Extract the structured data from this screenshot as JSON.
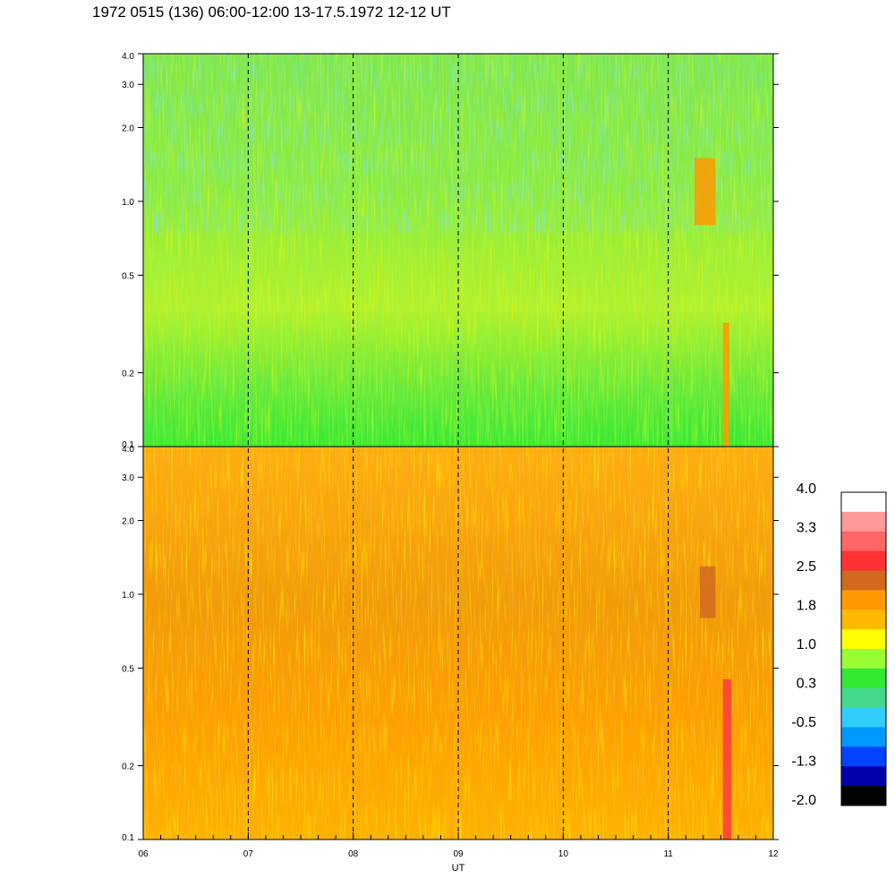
{
  "title": "1972 0515 (136) 06:00-12:00 13-17.5.1972  12-12 UT",
  "chart_data": {
    "type": "heatmap",
    "title": "1972 0515 (136) 06:00-12:00 13-17.5.1972  12-12 UT",
    "xlabel": "UT",
    "xlim": [
      6,
      12
    ],
    "x_ticks": [
      "06",
      "07",
      "08",
      "09",
      "10",
      "11",
      "12"
    ],
    "ylabel": "",
    "y_scale": "log",
    "ylim": [
      0.1,
      4.0
    ],
    "y_ticks": [
      {
        "value": 0.1,
        "label": "0.1"
      },
      {
        "value": 0.2,
        "label": "0.2"
      },
      {
        "value": 0.5,
        "label": "0.5"
      },
      {
        "value": 1.0,
        "label": "1.0"
      },
      {
        "value": 2.0,
        "label": "2.0"
      },
      {
        "value": 3.0,
        "label": "3.0"
      },
      {
        "value": 4.0,
        "label": "4.0"
      }
    ],
    "grid": "dashed vertical lines at each hour",
    "panels": [
      {
        "name": "upper",
        "dominant_levels": [
          0.3,
          1.0
        ],
        "notes_features": [
          {
            "x_range": [
              11.25,
              11.45
            ],
            "y_range": [
              0.8,
              1.5
            ],
            "level": 1.8
          },
          {
            "x_range": [
              11.52,
              11.58
            ],
            "y_range": [
              0.1,
              0.32
            ],
            "level": 1.8
          }
        ]
      },
      {
        "name": "lower",
        "dominant_levels": [
          1.8,
          2.5
        ],
        "notes_features": [
          {
            "x_range": [
              11.3,
              11.45
            ],
            "y_range": [
              0.8,
              1.3
            ],
            "level": 2.5
          },
          {
            "x_range": [
              11.52,
              11.6
            ],
            "y_range": [
              0.1,
              0.45
            ],
            "level": 2.5
          }
        ]
      }
    ],
    "colorbar": {
      "labels": [
        "4.0",
        "3.3",
        "2.5",
        "1.8",
        "1.0",
        "0.3",
        "-0.5",
        "-1.3",
        "-2.0"
      ],
      "colors": [
        "#ffffff",
        "#ff9999",
        "#ff6666",
        "#ff3333",
        "#d2691e",
        "#ff9900",
        "#ffb900",
        "#ffff00",
        "#99ff33",
        "#33e833",
        "#44d88a",
        "#33ccff",
        "#0099ff",
        "#0044ff",
        "#0000aa",
        "#000000"
      ]
    }
  }
}
